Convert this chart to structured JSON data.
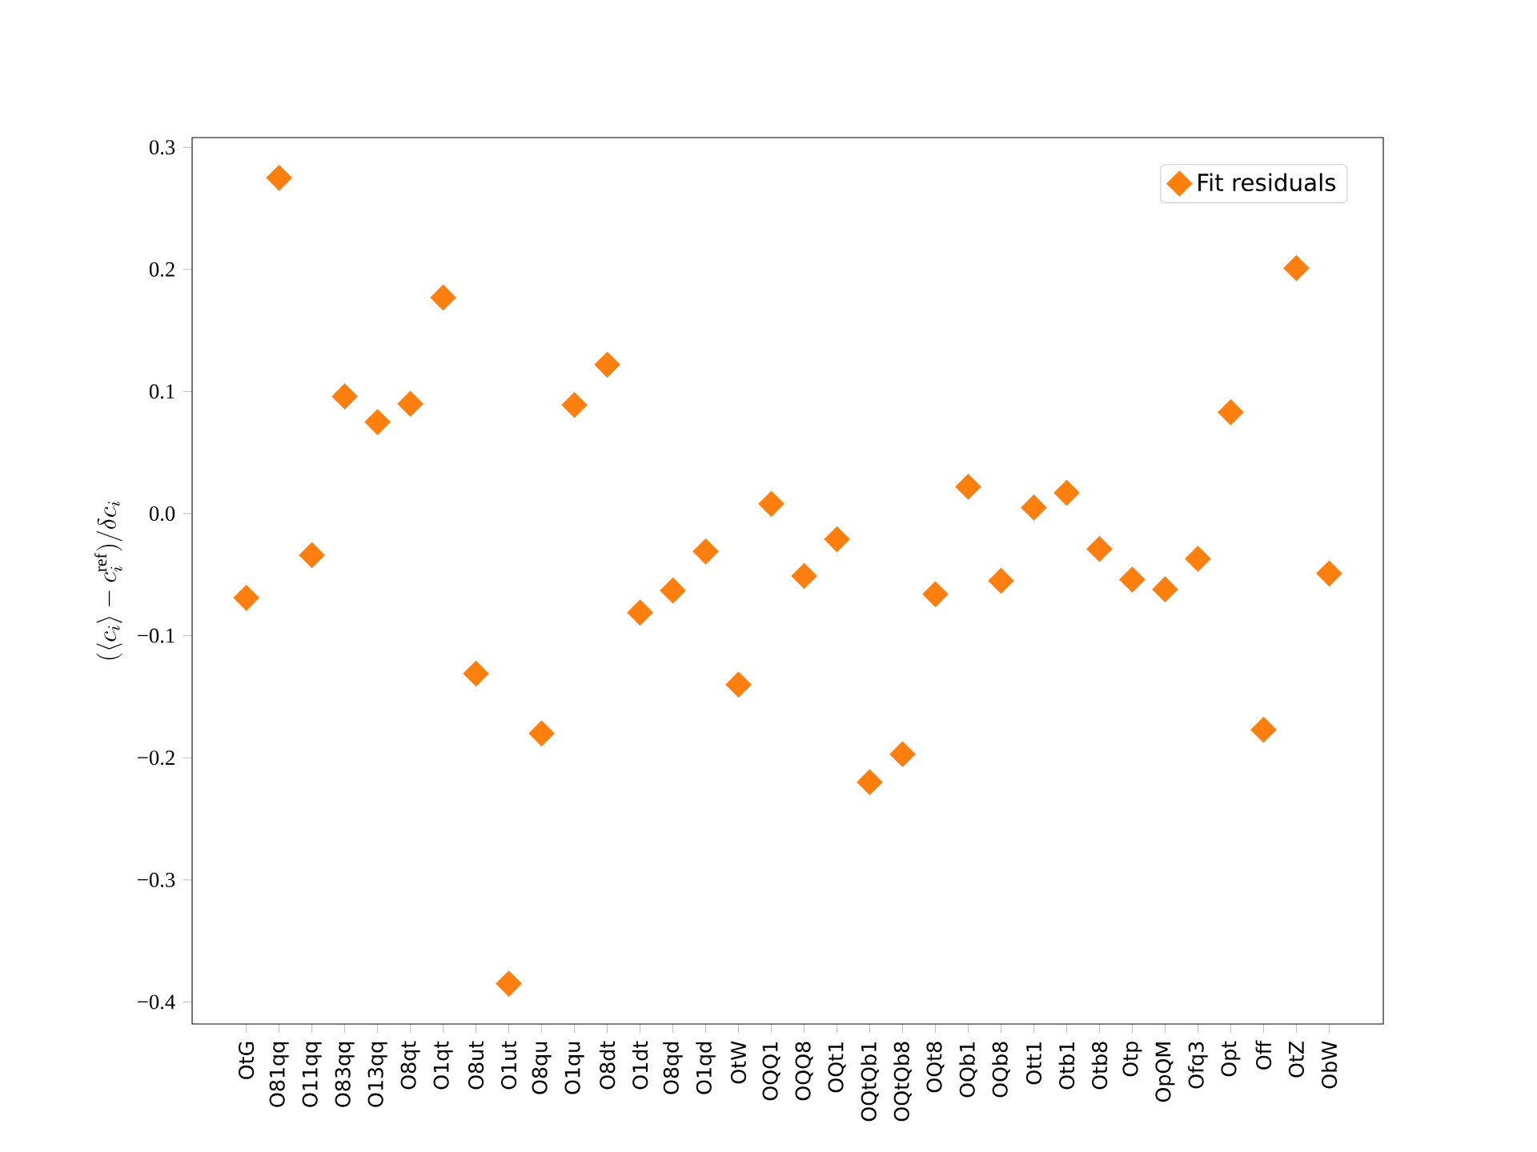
{
  "chart_data": {
    "type": "scatter",
    "ylabel": "(\\langle c_i\\rangle - c_i^{\\mathrm{ref}})/\\delta c_i",
    "categories": [
      "OtG",
      "O81qq",
      "O11qq",
      "O83qq",
      "O13qq",
      "O8qt",
      "O1qt",
      "O8ut",
      "O1ut",
      "O8qu",
      "O1qu",
      "O8dt",
      "O1dt",
      "O8qd",
      "O1qd",
      "OtW",
      "OQQ1",
      "OQQ8",
      "OQt1",
      "OQtQb1",
      "OQtQb8",
      "OQt8",
      "OQb1",
      "OQb8",
      "Ott1",
      "Otb1",
      "Otb8",
      "Otp",
      "OpQM",
      "Ofq3",
      "Opt",
      "Off",
      "OtZ",
      "ObW"
    ],
    "series": [
      {
        "name": "Fit residuals",
        "color": "#ff7f0e",
        "values": [
          -0.069,
          0.275,
          -0.034,
          0.096,
          0.075,
          0.09,
          0.177,
          -0.131,
          -0.385,
          -0.18,
          0.089,
          0.122,
          -0.081,
          -0.063,
          -0.031,
          -0.14,
          0.008,
          -0.051,
          -0.021,
          -0.22,
          -0.197,
          -0.066,
          0.022,
          -0.055,
          0.005,
          0.017,
          -0.029,
          -0.054,
          -0.062,
          -0.037,
          0.083,
          -0.177,
          0.201,
          -0.049
        ]
      }
    ],
    "ylim": [
      -0.418,
      0.308
    ],
    "yticks": [
      {
        "value": -0.4,
        "label": "−0.4"
      },
      {
        "value": -0.3,
        "label": "−0.3"
      },
      {
        "value": -0.2,
        "label": "−0.2"
      },
      {
        "value": -0.1,
        "label": "−0.1"
      },
      {
        "value": 0.0,
        "label": "0.0"
      },
      {
        "value": 0.1,
        "label": "0.1"
      },
      {
        "value": 0.2,
        "label": "0.2"
      },
      {
        "value": 0.3,
        "label": "0.3"
      }
    ],
    "marker": "diamond",
    "legend": "top right"
  }
}
